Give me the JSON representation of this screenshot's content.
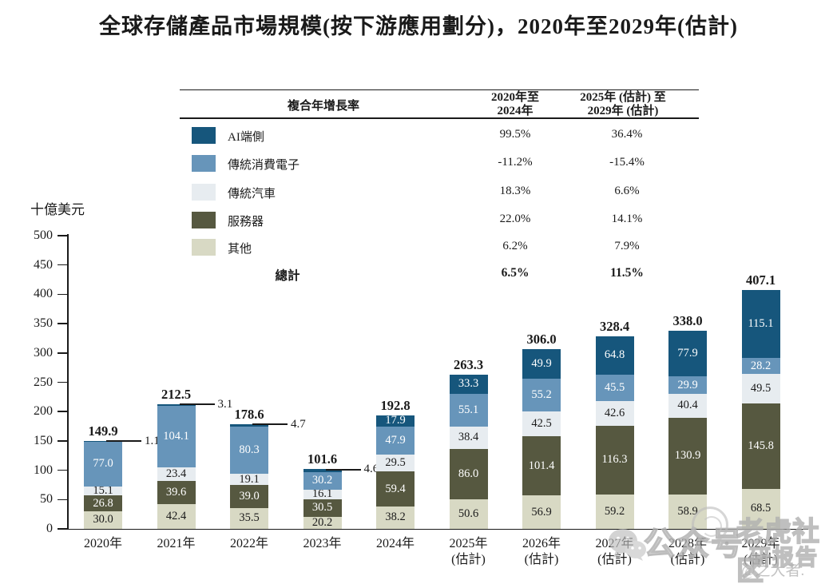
{
  "title": "全球存儲產品市場規模(按下游應用劃分)，2020年至2029年(估計)",
  "unit_label": "十億美元",
  "cagr_table": {
    "header": {
      "col0": "複合年增長率",
      "col1_line1": "2020年至",
      "col1_line2": "2024年",
      "col2_line1": "2025年 (估計) 至",
      "col2_line2": "2029年 (估計)"
    },
    "rows": [
      {
        "label": "AI端側",
        "color": "#16567c",
        "cagr_2020_2024": "99.5%",
        "cagr_2025_2029": "36.4%"
      },
      {
        "label": "傳統消費電子",
        "color": "#6795ba",
        "cagr_2020_2024": "-11.2%",
        "cagr_2025_2029": "-15.4%"
      },
      {
        "label": "傳統汽車",
        "color": "#e7ecf0",
        "cagr_2020_2024": "18.3%",
        "cagr_2025_2029": "6.6%"
      },
      {
        "label": "服務器",
        "color": "#565840",
        "cagr_2020_2024": "22.0%",
        "cagr_2025_2029": "14.1%"
      },
      {
        "label": "其他",
        "color": "#d8d9c4",
        "cagr_2020_2024": "6.2%",
        "cagr_2025_2029": "7.9%"
      }
    ],
    "total_row": {
      "label": "總計",
      "cagr_2020_2024": "6.5%",
      "cagr_2025_2029": "11.5%"
    }
  },
  "chart_data": {
    "type": "bar",
    "stacked": true,
    "title": "全球存儲產品市場規模(按下游應用劃分)，2020年至2029年(估計)",
    "ylabel": "十億美元",
    "ylim": [
      0,
      500
    ],
    "ytick_step": 50,
    "grid": false,
    "legend_position": "top-left table",
    "categories": [
      "2020年",
      "2021年",
      "2022年",
      "2023年",
      "2024年",
      [
        "2025年",
        "(估計)"
      ],
      [
        "2026年",
        "(估計)"
      ],
      [
        "2027年",
        "(估計)"
      ],
      [
        "2028年",
        "(估計)"
      ],
      [
        "2029年",
        "(估計)"
      ]
    ],
    "series": [
      {
        "name": "其他",
        "color": "#d8d9c4",
        "label_color": "#1a1a1a",
        "values": [
          30.0,
          42.4,
          35.5,
          20.2,
          38.2,
          50.6,
          56.9,
          59.2,
          58.9,
          68.5
        ]
      },
      {
        "name": "服務器",
        "color": "#565840",
        "label_color": "#ffffff",
        "values": [
          26.8,
          39.6,
          39.0,
          30.5,
          59.4,
          86.0,
          101.4,
          116.3,
          130.9,
          145.8
        ]
      },
      {
        "name": "傳統汽車",
        "color": "#e7ecf0",
        "label_color": "#1a1a1a",
        "values": [
          15.1,
          23.4,
          19.1,
          16.1,
          29.5,
          38.4,
          42.5,
          42.6,
          40.4,
          49.5
        ]
      },
      {
        "name": "傳統消費電子",
        "color": "#6795ba",
        "label_color": "#ffffff",
        "values": [
          77.0,
          104.1,
          80.3,
          30.2,
          47.9,
          55.1,
          55.2,
          45.5,
          29.9,
          28.2
        ]
      },
      {
        "name": "AI端側",
        "color": "#16567c",
        "label_color": "#ffffff",
        "values": [
          1.1,
          3.1,
          4.7,
          4.6,
          17.9,
          33.3,
          49.9,
          64.8,
          77.9,
          115.1
        ]
      }
    ],
    "totals": [
      149.9,
      212.5,
      178.6,
      101.6,
      192.8,
      263.3,
      306.0,
      328.4,
      338.0,
      407.1
    ],
    "ai_callout_indices": [
      0,
      1,
      2,
      3
    ]
  },
  "watermark": {
    "wechat_icon": "wechat-icon",
    "circle_icon": "circle-logo-icon",
    "account_type": "公众号",
    "separator": "·",
    "brand": "老虎社区",
    "brand_sub": "研报告",
    "handle": "@之大者."
  }
}
